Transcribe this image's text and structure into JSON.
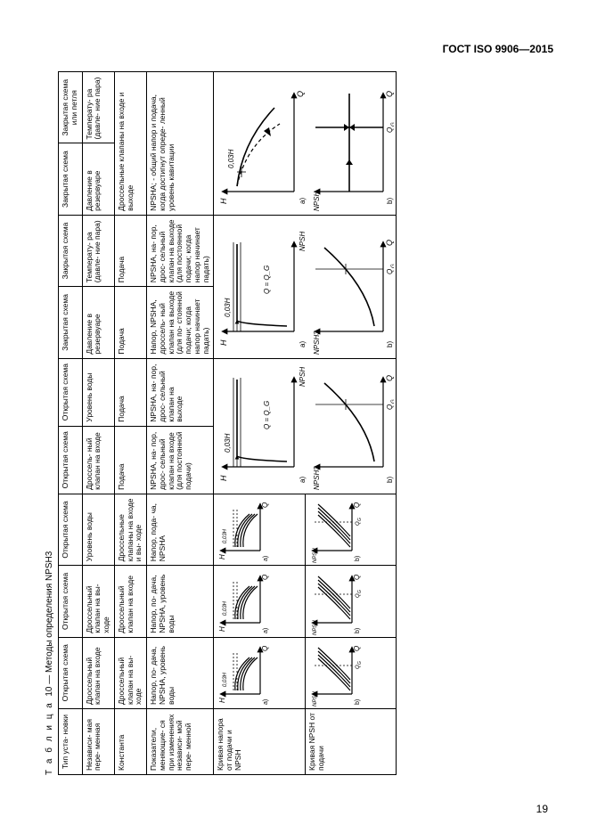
{
  "header": "ГОСТ ISO 9906—2015",
  "caption_prefix": "Т а б л и ц а",
  "caption_num": "10",
  "caption_rest": " — Методы определения NPSH3",
  "page_num": "19",
  "cols": {
    "c0": "Тип уста-\nновки",
    "c1": "Открытая\nсхема",
    "c2": "Открытая\nсхема",
    "c3": "Открытая\nсхема",
    "c4": "Открытая\nсхема",
    "c5": "Открытая\nсхема",
    "c6": "Закрытая\nсхема",
    "c7": "Закрытая\nсхема",
    "c8": "Закрытая\nсхема",
    "c9": "Закрытая\nсхема\nили петля"
  },
  "r1": {
    "c0": "Независи-\nмая пере-\nменная",
    "c1": "Дроссельный клапан на входе",
    "c2": "Дроссельный клапан на вы-\nходе",
    "c3": "Уровень воды",
    "c4": "Дроссель-\nный клапан на входе",
    "c5": "Уровень воды",
    "c6": "Давление в резервуаре",
    "c7": "Температу-\nра (давле-\nние пара)",
    "c8": "Давление в резервуаре",
    "c9": "Температу-\nра (давле-\nние пара)"
  },
  "r2": {
    "c0": "Константа",
    "c1": "Дроссельный клапан на вы-\nходе",
    "c2": "Дроссельный клапан на входе",
    "c3": "Дроссельные клапаны на входе и вы-\nходе",
    "c4": "Подача",
    "c5": "Подача",
    "c6": "Подача",
    "c7": "Подача",
    "c89": "Дроссельные клапаны на входе и выходе"
  },
  "r3": {
    "c0": "Показатели, меняющие-\nся при изменениях независи-\nмой пере-\nменной",
    "c1": "Напор, по-\nдача, NPSHA, уровень воды",
    "c2": "Напор, по-\nдача, NPSHA, уровень воды",
    "c3": "Напор, пода-\nча, NPSHA",
    "c4": "NPSHA, на-\nпор, дрос-\nсельный клапан на входе (для постоянной подачи)",
    "c5": "NPSHA, на-\nпор, дрос-\nсельный клапан на выходе",
    "c6": "Напор, NPSHA, дроссель-\nный клапан на выходе (для по-\nстоянной подачи; когда напор начинает падать)",
    "c7": "NPSHA, на-\nпор, дрос-\nсельный клапан на выходе (для постоянной подачи; когда напор начинает падать)",
    "c89": "NPSHA;\n- общий напор и подача, когда достигнут опреде-\nленный уровень кавитации"
  },
  "r4": {
    "c0": "Кривая напора от подачи и NPSH"
  },
  "r5": {
    "c0": "Кривая NPSH от подачи"
  },
  "diag": {
    "lbl_H": "H",
    "lbl_Q": "Q",
    "lbl_NPSH": "NPSH",
    "lbl_NPSH3": "NPSH3",
    "lbl_003H": "0,03H",
    "lbl_QG": "Q_G",
    "lbl_QQG": "Q = Q_G",
    "lbl_a": "a)",
    "lbl_b": "b)",
    "stroke": "#000",
    "lw": 1.2
  }
}
